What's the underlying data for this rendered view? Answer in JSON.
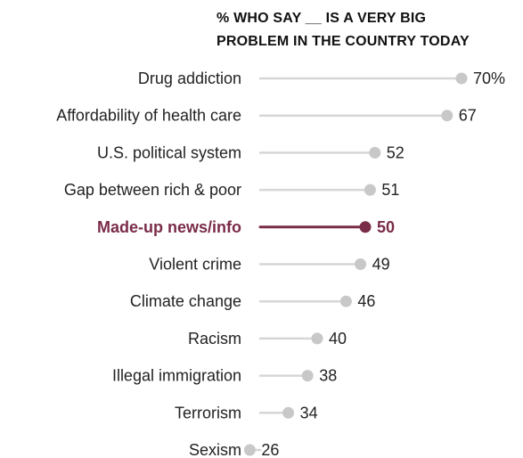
{
  "chart_data": {
    "type": "dot",
    "title": "% WHO SAY __ IS A VERY BIG PROBLEM IN THE COUNTRY TODAY",
    "title_lines": [
      "% WHO SAY __ IS A VERY BIG",
      "PROBLEM IN THE COUNTRY TODAY"
    ],
    "categories": [
      "Drug addiction",
      "Affordability of health care",
      "U.S. political system",
      "Gap between rich & poor",
      "Made-up news/info",
      "Violent crime",
      "Climate change",
      "Racism",
      "Illegal immigration",
      "Terrorism",
      "Sexism"
    ],
    "values": [
      70,
      67,
      52,
      51,
      50,
      49,
      46,
      40,
      38,
      34,
      26
    ],
    "value_labels": [
      "70%",
      "67",
      "52",
      "51",
      "50",
      "49",
      "46",
      "40",
      "38",
      "34",
      "26"
    ],
    "highlight_index": 4,
    "colors": {
      "default_line": "#d6d6d6",
      "default_dot": "#c8c8c8",
      "highlight": "#7a2b48",
      "text": "#222222"
    },
    "xlim": [
      0,
      70
    ],
    "grid": false,
    "legend": "none"
  }
}
